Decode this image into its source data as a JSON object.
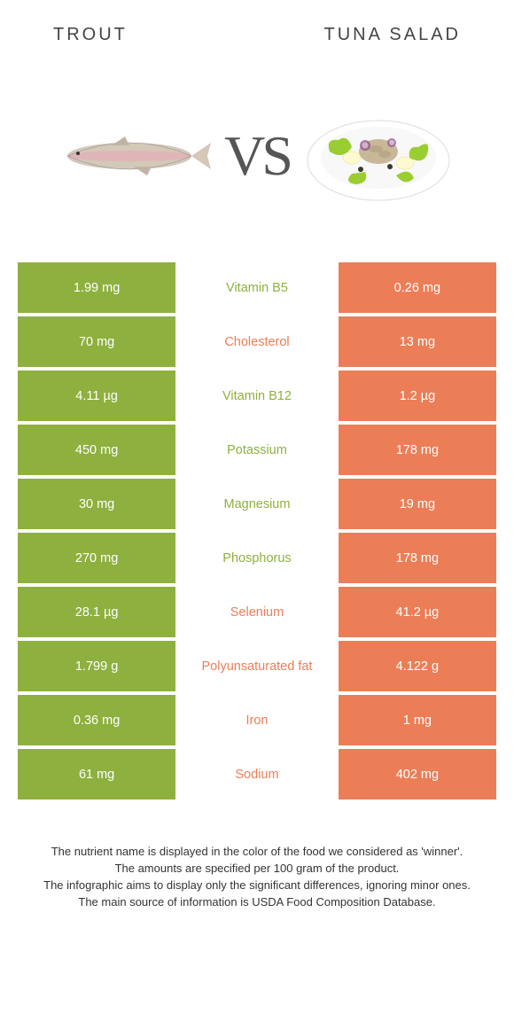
{
  "header": {
    "left": "Trout",
    "right": "Tuna salad"
  },
  "vs": "VS",
  "colors": {
    "left": "#8eb03f",
    "right": "#eb7e57",
    "mid_bg": "#ffffff",
    "nutrient_left": "#8eb03f",
    "nutrient_right": "#eb7e57"
  },
  "rows": [
    {
      "left": "1.99 mg",
      "mid": "Vitamin B5",
      "right": "0.26 mg",
      "winner": "left"
    },
    {
      "left": "70 mg",
      "mid": "Cholesterol",
      "right": "13 mg",
      "winner": "right"
    },
    {
      "left": "4.11 µg",
      "mid": "Vitamin B12",
      "right": "1.2 µg",
      "winner": "left"
    },
    {
      "left": "450 mg",
      "mid": "Potassium",
      "right": "178 mg",
      "winner": "left"
    },
    {
      "left": "30 mg",
      "mid": "Magnesium",
      "right": "19 mg",
      "winner": "left"
    },
    {
      "left": "270 mg",
      "mid": "Phosphorus",
      "right": "178 mg",
      "winner": "left"
    },
    {
      "left": "28.1 µg",
      "mid": "Selenium",
      "right": "41.2 µg",
      "winner": "right"
    },
    {
      "left": "1.799 g",
      "mid": "Polyunsaturated fat",
      "right": "4.122 g",
      "winner": "right"
    },
    {
      "left": "0.36 mg",
      "mid": "Iron",
      "right": "1 mg",
      "winner": "right"
    },
    {
      "left": "61 mg",
      "mid": "Sodium",
      "right": "402 mg",
      "winner": "right"
    }
  ],
  "footer": {
    "l1": "The nutrient name is displayed in the color of the food we considered as 'winner'.",
    "l2": "The amounts are specified per 100 gram of the product.",
    "l3": "The infographic aims to display only the significant differences, ignoring minor ones.",
    "l4": "The main source of information is USDA Food Composition Database."
  }
}
